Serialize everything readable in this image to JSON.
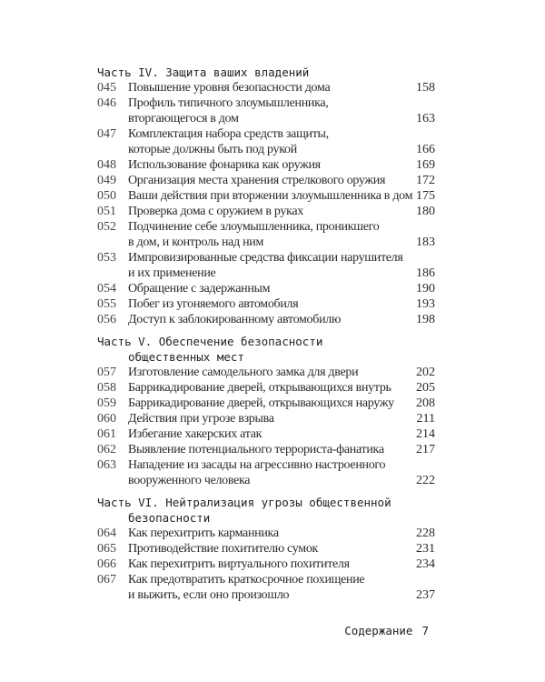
{
  "sections": [
    {
      "heading": [
        "Часть IV. Защита ваших владений"
      ],
      "entries": [
        {
          "num": "045",
          "lines": [
            "Повышение уровня безопасности дома"
          ],
          "page": "158"
        },
        {
          "num": "046",
          "lines": [
            "Профиль типичного злоумышленника,",
            "вторгающегося в дом"
          ],
          "page": "163"
        },
        {
          "num": "047",
          "lines": [
            "Комплектация набора средств защиты,",
            "которые должны быть под рукой"
          ],
          "page": "166"
        },
        {
          "num": "048",
          "lines": [
            "Использование фонарика как оружия"
          ],
          "page": "169"
        },
        {
          "num": "049",
          "lines": [
            "Организация места хранения стрелкового оружия"
          ],
          "page": "172"
        },
        {
          "num": "050",
          "lines": [
            "Ваши действия при вторжении злоумышленника в дом"
          ],
          "page": "175"
        },
        {
          "num": "051",
          "lines": [
            "Проверка дома с оружием в руках"
          ],
          "page": "180"
        },
        {
          "num": "052",
          "lines": [
            "Подчинение себе злоумышленника, проникшего",
            "в дом, и контроль над ним"
          ],
          "page": "183"
        },
        {
          "num": "053",
          "lines": [
            "Импровизированные средства фиксации нарушителя",
            "и их применение"
          ],
          "page": "186"
        },
        {
          "num": "054",
          "lines": [
            "Обращение с задержанным"
          ],
          "page": "190"
        },
        {
          "num": "055",
          "lines": [
            "Побег из угоняемого автомобиля"
          ],
          "page": "193"
        },
        {
          "num": "056",
          "lines": [
            "Доступ к заблокированному автомобилю"
          ],
          "page": "198"
        }
      ]
    },
    {
      "heading": [
        "Часть V. Обеспечение безопасности",
        "общественных мест"
      ],
      "entries": [
        {
          "num": "057",
          "lines": [
            "Изготовление самодельного замка для двери"
          ],
          "page": "202"
        },
        {
          "num": "058",
          "lines": [
            "Баррикадирование дверей, открывающихся внутрь"
          ],
          "page": "205"
        },
        {
          "num": "059",
          "lines": [
            "Баррикадирование дверей, открывающихся наружу"
          ],
          "page": "208"
        },
        {
          "num": "060",
          "lines": [
            "Действия при угрозе взрыва"
          ],
          "page": "211"
        },
        {
          "num": "061",
          "lines": [
            "Избегание хакерских атак"
          ],
          "page": "214"
        },
        {
          "num": "062",
          "lines": [
            "Выявление потенциального террориста-фанатика"
          ],
          "page": "217"
        },
        {
          "num": "063",
          "lines": [
            "Нападение из засады на агрессивно настроенного",
            "вооруженного человека"
          ],
          "page": "222"
        }
      ]
    },
    {
      "heading": [
        "Часть VI. Нейтрализация угрозы общественной",
        "безопасности"
      ],
      "entries": [
        {
          "num": "064",
          "lines": [
            "Как перехитрить карманника"
          ],
          "page": "228"
        },
        {
          "num": "065",
          "lines": [
            "Противодействие похитителю сумок"
          ],
          "page": "231"
        },
        {
          "num": "066",
          "lines": [
            "Как перехитрить виртуального похитителя"
          ],
          "page": "234"
        },
        {
          "num": "067",
          "lines": [
            "Как предотвратить краткосрочное похищение",
            "и выжить, если оно произошло"
          ],
          "page": "237"
        }
      ]
    }
  ],
  "footer": {
    "label": "Содержание",
    "page_number": "7"
  }
}
